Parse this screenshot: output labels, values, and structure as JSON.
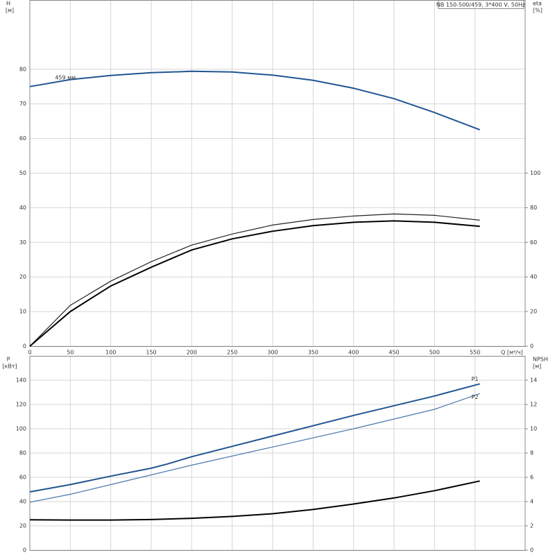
{
  "chart_data": [
    {
      "type": "line",
      "title": "NB 150-500/459, 3*400 V, 50Hz",
      "ylabel": "H",
      "yunit": "[м]",
      "y2label": "eta",
      "y2unit": "[%]",
      "xlabel": "Q [м³/ч]",
      "xlim": [
        0,
        612
      ],
      "xticks": [
        0,
        50,
        100,
        150,
        200,
        250,
        300,
        350,
        400,
        450,
        500,
        550
      ],
      "ylim": [
        0,
        100
      ],
      "yticks": [
        0,
        10,
        20,
        30,
        40,
        50,
        60,
        70,
        80
      ],
      "y2lim": [
        0,
        200
      ],
      "y2ticks": [
        0,
        20,
        40,
        60,
        80,
        100
      ],
      "grid": true,
      "series": [
        {
          "name": "H",
          "annotation": "459 мм",
          "color": "#1f5590",
          "x": [
            0,
            50,
            100,
            150,
            200,
            250,
            300,
            350,
            400,
            450,
            500,
            556
          ],
          "values": [
            75,
            77,
            78.2,
            79,
            79.4,
            79.2,
            78.3,
            76.8,
            74.5,
            71.5,
            67.5,
            62.5
          ]
        },
        {
          "name": "eta",
          "color": "#222222",
          "axis": "y2",
          "x": [
            0,
            50,
            100,
            150,
            200,
            250,
            300,
            350,
            400,
            450,
            500,
            556
          ],
          "values": [
            0,
            23.6,
            37.6,
            48.8,
            58.4,
            64.8,
            70,
            73.2,
            75.2,
            76.4,
            75.6,
            72.8
          ]
        },
        {
          "name": "eta",
          "color": "#000000",
          "axis": "y2",
          "x": [
            0,
            50,
            100,
            150,
            200,
            250,
            300,
            350,
            400,
            450,
            500,
            556
          ],
          "values": [
            0,
            20,
            34.8,
            45.6,
            55.6,
            62,
            66.4,
            69.6,
            71.6,
            72.4,
            71.6,
            69.2
          ]
        }
      ]
    },
    {
      "type": "line",
      "ylabel": "P",
      "yunit": "[кВт]",
      "y2label": "NPSH",
      "y2unit": "[м]",
      "xlim": [
        0,
        612
      ],
      "ylim": [
        0,
        160
      ],
      "yticks": [
        0,
        20,
        40,
        60,
        80,
        100,
        120,
        140
      ],
      "y2lim": [
        0,
        16
      ],
      "y2ticks": [
        0,
        2,
        4,
        6,
        8,
        10,
        12,
        14
      ],
      "grid": true,
      "series": [
        {
          "name": "P1",
          "color": "#1f5590",
          "x": [
            0,
            50,
            100,
            150,
            170,
            200,
            300,
            400,
            500,
            556
          ],
          "values": [
            48,
            54,
            61,
            67.5,
            71,
            77,
            94,
            111,
            127,
            137
          ]
        },
        {
          "name": "P2",
          "color": "#4a78ad",
          "x": [
            0,
            50,
            100,
            150,
            200,
            300,
            400,
            500,
            556
          ],
          "values": [
            39.5,
            46,
            54,
            62,
            70,
            85,
            100,
            116,
            129
          ]
        },
        {
          "name": "NPSH",
          "color": "#000000",
          "axis": "y2",
          "x": [
            0,
            50,
            100,
            150,
            200,
            250,
            300,
            350,
            400,
            450,
            500,
            556
          ],
          "values": [
            2.5,
            2.48,
            2.48,
            2.52,
            2.62,
            2.78,
            3.0,
            3.35,
            3.8,
            4.3,
            4.9,
            5.7
          ]
        }
      ]
    }
  ]
}
